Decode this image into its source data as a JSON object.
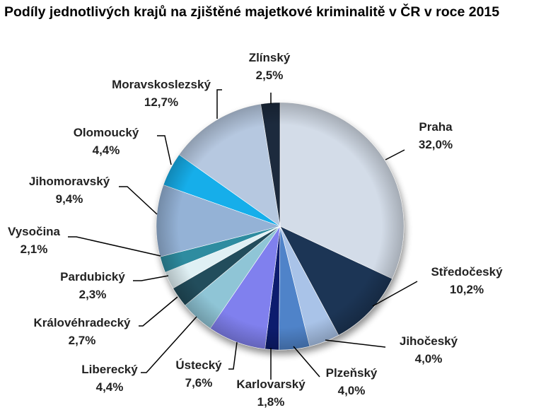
{
  "chart_data": {
    "type": "pie",
    "title": "Podíly jednotlivých krajů na zjištěné majetkové kriminalitě v ČR v roce 2015",
    "slices": [
      {
        "name": "Praha",
        "value": 32.0,
        "label": "32,0%",
        "color": "#d3dce8"
      },
      {
        "name": "Středočeský",
        "value": 10.2,
        "label": "10,2%",
        "color": "#1f3654"
      },
      {
        "name": "Jihočeský",
        "value": 4.0,
        "label": "4,0%",
        "color": "#a9c3e8"
      },
      {
        "name": "Plzeňský",
        "value": 4.0,
        "label": "4,0%",
        "color": "#4f83c9"
      },
      {
        "name": "Karlovarský",
        "value": 1.8,
        "label": "1,8%",
        "color": "#0a1a6e"
      },
      {
        "name": "Ústecký",
        "value": 7.6,
        "label": "7,6%",
        "color": "#8080ee"
      },
      {
        "name": "Liberecký",
        "value": 4.4,
        "label": "4,4%",
        "color": "#8fc5d6"
      },
      {
        "name": "Královéhradecký",
        "value": 2.7,
        "label": "2,7%",
        "color": "#244e5c"
      },
      {
        "name": "Pardubický",
        "value": 2.3,
        "label": "2,3%",
        "color": "#dff0f4"
      },
      {
        "name": "Vysočina",
        "value": 2.1,
        "label": "2,1%",
        "color": "#2d8ca0"
      },
      {
        "name": "Jihomoravský",
        "value": 9.4,
        "label": "9,4%",
        "color": "#94b2d6"
      },
      {
        "name": "Olomoucký",
        "value": 4.4,
        "label": "4,4%",
        "color": "#12aeea"
      },
      {
        "name": "Moravskoslezský",
        "value": 12.7,
        "label": "12,7%",
        "color": "#b6c8e0"
      },
      {
        "name": "Zlínský",
        "value": 2.5,
        "label": "2,5%",
        "color": "#1e2a3c"
      }
    ]
  }
}
